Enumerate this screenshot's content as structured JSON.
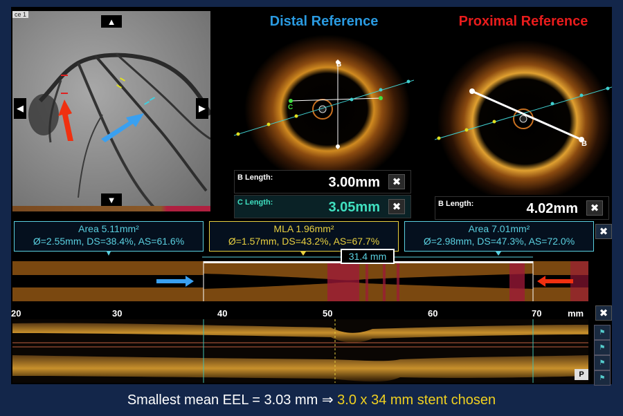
{
  "angiogram": {
    "tab_label": "ce 1"
  },
  "distal": {
    "title": "Distal Reference",
    "title_color": "#2a9ae0",
    "label_b": "B",
    "label_c": "C",
    "b_length_label": "B Length:",
    "b_length_value": "3.00mm",
    "c_length_label": "C Length:",
    "c_length_value": "3.05mm"
  },
  "proximal": {
    "title": "Proximal Reference",
    "title_color": "#e81c1c",
    "label_b": "B",
    "b_length_label": "B Length:",
    "b_length_value": "4.02mm"
  },
  "close_glyph": "✖",
  "area_boxes": [
    {
      "line1": "Area 5.11mm²",
      "line2": "Ø=2.55mm, DS=38.4%, AS=61.6%",
      "color": "#5ad0e0"
    },
    {
      "line1": "MLA 1.96mm²",
      "line2": "Ø=1.57mm, DS=43.2%, AS=67.7%",
      "color": "#e8d040"
    },
    {
      "line1": "Area 7.01mm²",
      "line2": "Ø=2.98mm, DS=47.3%, AS=72.0%",
      "color": "#5ad0e0"
    }
  ],
  "segment_length": "31.4 mm",
  "ruler": {
    "ticks": [
      "20",
      "30",
      "40",
      "50",
      "60",
      "70"
    ],
    "unit": "mm"
  },
  "side_tools": {
    "p_button": "P"
  },
  "caption": {
    "text": "Smallest mean EEL = 3.03 mm ⇒ ",
    "highlight": "3.0 x 34 mm stent chosen"
  }
}
